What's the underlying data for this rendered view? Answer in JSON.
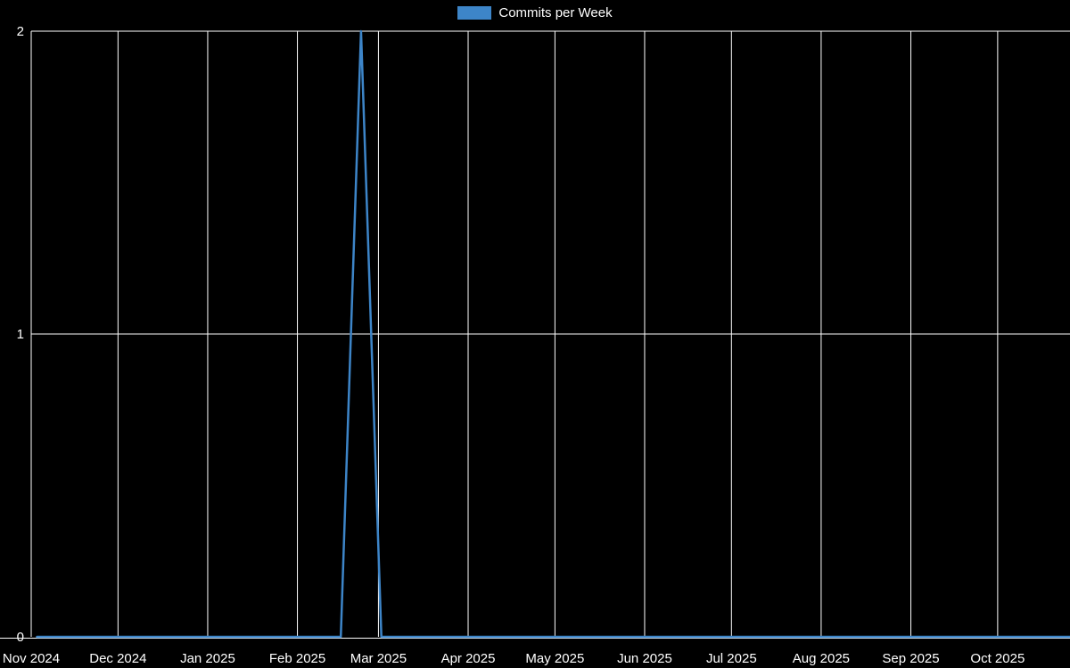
{
  "legend": {
    "label": "Commits per Week",
    "color": "#3d85c8"
  },
  "chart_data": {
    "type": "line",
    "title": "Commits per Week",
    "background": "#000000",
    "grid": true,
    "grid_color": "#ffffff",
    "text_color": "#ffffff",
    "legend_position": "top-center",
    "ylim": [
      0,
      2
    ],
    "y_ticks": [
      0,
      1,
      2
    ],
    "x_range": [
      "2024-11-01",
      "2025-10-26"
    ],
    "x_ticks": [
      {
        "label": "Nov 2024",
        "date": "2024-11-01"
      },
      {
        "label": "Dec 2024",
        "date": "2024-12-01"
      },
      {
        "label": "Jan 2025",
        "date": "2025-01-01"
      },
      {
        "label": "Feb 2025",
        "date": "2025-02-01"
      },
      {
        "label": "Mar 2025",
        "date": "2025-03-01"
      },
      {
        "label": "Apr 2025",
        "date": "2025-04-01"
      },
      {
        "label": "May 2025",
        "date": "2025-05-01"
      },
      {
        "label": "Jun 2025",
        "date": "2025-06-01"
      },
      {
        "label": "Jul 2025",
        "date": "2025-07-01"
      },
      {
        "label": "Aug 2025",
        "date": "2025-08-01"
      },
      {
        "label": "Sep 2025",
        "date": "2025-09-01"
      },
      {
        "label": "Oct 2025",
        "date": "2025-10-01"
      }
    ],
    "series": [
      {
        "name": "Commits per Week",
        "color": "#3d85c8",
        "start_week": "2024-11-03",
        "interval_days": 7,
        "values": [
          0,
          0,
          0,
          0,
          0,
          0,
          0,
          0,
          0,
          0,
          0,
          0,
          0,
          0,
          0,
          0,
          2,
          0,
          0,
          0,
          0,
          0,
          0,
          0,
          0,
          0,
          0,
          0,
          0,
          0,
          0,
          0,
          0,
          0,
          0,
          0,
          0,
          0,
          0,
          0,
          0,
          0,
          0,
          0,
          0,
          0,
          0,
          0,
          0,
          0,
          0,
          0
        ]
      }
    ]
  }
}
